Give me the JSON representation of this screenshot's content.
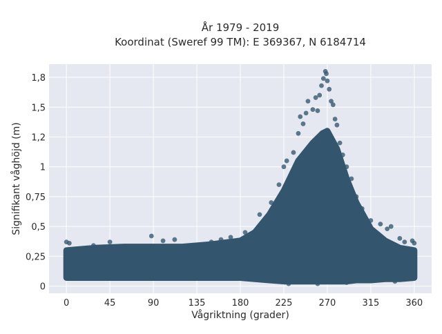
{
  "chart_data": {
    "type": "scatter",
    "title": "År 1979 - 2019",
    "subtitle": "Koordinat (Sweref 99 TM): E 369367, N 6184714",
    "xlabel": "Vågriktning (grader)",
    "ylabel": "Signifikant våghöjd (m)",
    "xlim": [
      -18,
      378
    ],
    "ylim": [
      -0.06,
      1.86
    ],
    "xticks": [
      0,
      45,
      90,
      135,
      180,
      225,
      270,
      315,
      360
    ],
    "xtick_labels": [
      "0",
      "45",
      "90",
      "135",
      "180",
      "225",
      "270",
      "315",
      "360"
    ],
    "yticks": [
      0,
      0.25,
      0.5,
      0.75,
      1,
      1.25,
      1.5,
      1.75
    ],
    "ytick_labels": [
      "0",
      "0,25",
      "0,5",
      "0,75",
      "1",
      "1,2",
      "1,5",
      "1,8"
    ],
    "grid": true,
    "marker_color": "#33566e",
    "background_color": "#e5e8f0",
    "band": {
      "x": [
        0,
        30,
        60,
        90,
        120,
        150,
        180,
        195,
        210,
        225,
        240,
        255,
        265,
        270,
        280,
        290,
        300,
        315,
        330,
        345,
        360
      ],
      "y_min": [
        0.07,
        0.07,
        0.07,
        0.07,
        0.07,
        0.07,
        0.07,
        0.06,
        0.05,
        0.04,
        0.04,
        0.04,
        0.04,
        0.04,
        0.04,
        0.04,
        0.05,
        0.05,
        0.06,
        0.06,
        0.07
      ],
      "y_max": [
        0.3,
        0.32,
        0.33,
        0.33,
        0.33,
        0.35,
        0.38,
        0.45,
        0.6,
        0.8,
        1.05,
        1.2,
        1.28,
        1.3,
        1.15,
        0.9,
        0.7,
        0.48,
        0.38,
        0.32,
        0.3
      ]
    },
    "outliers": [
      {
        "x": 0,
        "y": 0.37
      },
      {
        "x": 3,
        "y": 0.36
      },
      {
        "x": 28,
        "y": 0.34
      },
      {
        "x": 45,
        "y": 0.37
      },
      {
        "x": 88,
        "y": 0.42
      },
      {
        "x": 100,
        "y": 0.38
      },
      {
        "x": 112,
        "y": 0.39
      },
      {
        "x": 150,
        "y": 0.37
      },
      {
        "x": 160,
        "y": 0.39
      },
      {
        "x": 170,
        "y": 0.41
      },
      {
        "x": 185,
        "y": 0.45
      },
      {
        "x": 200,
        "y": 0.6
      },
      {
        "x": 212,
        "y": 0.7
      },
      {
        "x": 220,
        "y": 0.85
      },
      {
        "x": 225,
        "y": 1.0
      },
      {
        "x": 228,
        "y": 1.05
      },
      {
        "x": 235,
        "y": 1.12
      },
      {
        "x": 240,
        "y": 1.28
      },
      {
        "x": 242,
        "y": 1.42
      },
      {
        "x": 245,
        "y": 1.36
      },
      {
        "x": 248,
        "y": 1.45
      },
      {
        "x": 250,
        "y": 1.55
      },
      {
        "x": 255,
        "y": 1.48
      },
      {
        "x": 258,
        "y": 1.58
      },
      {
        "x": 260,
        "y": 1.47
      },
      {
        "x": 262,
        "y": 1.6
      },
      {
        "x": 264,
        "y": 1.68
      },
      {
        "x": 266,
        "y": 1.74
      },
      {
        "x": 268,
        "y": 1.8
      },
      {
        "x": 269,
        "y": 1.78
      },
      {
        "x": 270,
        "y": 1.72
      },
      {
        "x": 272,
        "y": 1.65
      },
      {
        "x": 274,
        "y": 1.55
      },
      {
        "x": 276,
        "y": 1.52
      },
      {
        "x": 278,
        "y": 1.4
      },
      {
        "x": 280,
        "y": 1.35
      },
      {
        "x": 283,
        "y": 1.2
      },
      {
        "x": 286,
        "y": 1.1
      },
      {
        "x": 290,
        "y": 1.0
      },
      {
        "x": 295,
        "y": 0.9
      },
      {
        "x": 300,
        "y": 0.75
      },
      {
        "x": 306,
        "y": 0.65
      },
      {
        "x": 315,
        "y": 0.55
      },
      {
        "x": 325,
        "y": 0.52
      },
      {
        "x": 332,
        "y": 0.48
      },
      {
        "x": 336,
        "y": 0.5
      },
      {
        "x": 345,
        "y": 0.4
      },
      {
        "x": 350,
        "y": 0.37
      },
      {
        "x": 358,
        "y": 0.38
      },
      {
        "x": 360,
        "y": 0.36
      },
      {
        "x": 230,
        "y": 0.02
      },
      {
        "x": 260,
        "y": 0.02
      },
      {
        "x": 290,
        "y": 0.03
      },
      {
        "x": 340,
        "y": 0.04
      }
    ]
  }
}
